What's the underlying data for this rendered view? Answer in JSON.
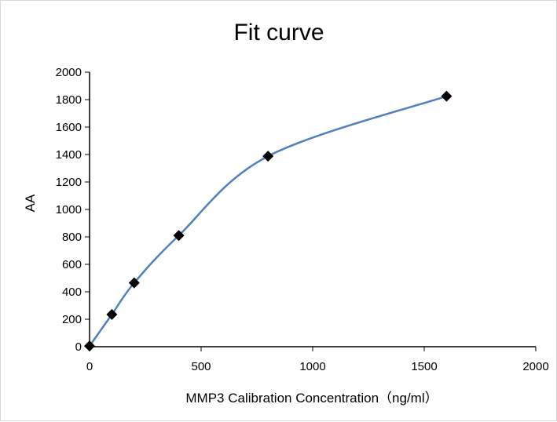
{
  "chart_data": {
    "type": "scatter",
    "title": "Fit curve",
    "xlabel": "MMP3 Calibration Concentration（ng/ml）",
    "ylabel": "AA",
    "xlim": [
      0,
      2000
    ],
    "ylim": [
      0,
      2000
    ],
    "xticks": [
      0,
      500,
      1000,
      1500,
      2000
    ],
    "yticks": [
      0,
      200,
      400,
      600,
      800,
      1000,
      1200,
      1400,
      1600,
      1800,
      2000
    ],
    "grid": false,
    "legend": "none",
    "series": [
      {
        "x": [
          0,
          100,
          200,
          400,
          800,
          1600
        ],
        "y": [
          5,
          235,
          465,
          810,
          1388,
          1825
        ],
        "marker": "diamond",
        "marker_color": "#000000",
        "line": "smooth fit",
        "line_color": "#4f81bd"
      }
    ]
  }
}
